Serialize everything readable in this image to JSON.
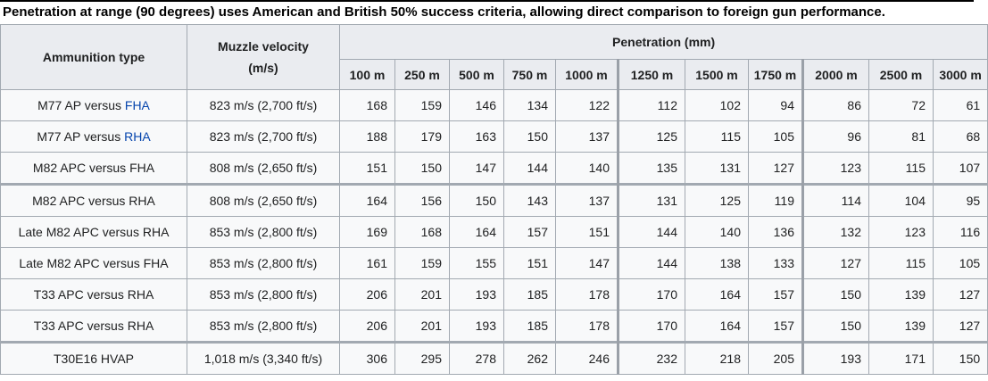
{
  "page": {
    "caption": "Penetration at range (90 degrees) uses American and British 50% success criteria, allowing direct comparison to foreign gun performance."
  },
  "colors": {
    "header_bg": "#eaecf0",
    "cell_bg": "#f8f9fa",
    "border": "#a2a9b1",
    "link": "#0645ad",
    "top_rule": "#000000"
  },
  "table": {
    "col1_header": "Ammunition type",
    "col2_header_line1": "Muzzle velocity",
    "col2_header_line2": "(m/s)",
    "group_header": "Penetration (mm)",
    "range_headers": [
      "100 m",
      "250 m",
      "500 m",
      "750 m",
      "1000 m",
      "1250 m",
      "1500 m",
      "1750 m",
      "2000 m",
      "2500 m",
      "3000 m"
    ],
    "rows": [
      {
        "ammo_prefix": "M77 AP versus ",
        "ammo_link": "FHA",
        "muzzle": "823 m/s (2,700 ft/s)",
        "thick_top": false,
        "values": [
          168,
          159,
          146,
          134,
          122,
          112,
          102,
          94,
          86,
          72,
          61
        ]
      },
      {
        "ammo_prefix": "M77 AP versus ",
        "ammo_link": "RHA",
        "muzzle": "823 m/s (2,700 ft/s)",
        "thick_top": false,
        "values": [
          188,
          179,
          163,
          150,
          137,
          125,
          115,
          105,
          96,
          81,
          68
        ]
      },
      {
        "ammo_prefix": "M82 APC versus FHA",
        "ammo_link": "",
        "muzzle": "808 m/s (2,650 ft/s)",
        "thick_top": false,
        "values": [
          151,
          150,
          147,
          144,
          140,
          135,
          131,
          127,
          123,
          115,
          107
        ]
      },
      {
        "ammo_prefix": "M82 APC versus RHA",
        "ammo_link": "",
        "muzzle": "808 m/s (2,650 ft/s)",
        "thick_top": true,
        "values": [
          164,
          156,
          150,
          143,
          137,
          131,
          125,
          119,
          114,
          104,
          95
        ]
      },
      {
        "ammo_prefix": "Late M82 APC versus RHA",
        "ammo_link": "",
        "muzzle": "853 m/s (2,800 ft/s)",
        "thick_top": false,
        "values": [
          169,
          168,
          164,
          157,
          151,
          144,
          140,
          136,
          132,
          123,
          116
        ]
      },
      {
        "ammo_prefix": "Late M82 APC versus FHA",
        "ammo_link": "",
        "muzzle": "853 m/s (2,800 ft/s)",
        "thick_top": false,
        "values": [
          161,
          159,
          155,
          151,
          147,
          144,
          138,
          133,
          127,
          115,
          105
        ]
      },
      {
        "ammo_prefix": "T33 APC versus RHA",
        "ammo_link": "",
        "muzzle": "853 m/s (2,800 ft/s)",
        "thick_top": false,
        "values": [
          206,
          201,
          193,
          185,
          178,
          170,
          164,
          157,
          150,
          139,
          127
        ]
      },
      {
        "ammo_prefix": "T33 APC versus RHA",
        "ammo_link": "",
        "muzzle": "853 m/s (2,800 ft/s)",
        "thick_top": false,
        "values": [
          206,
          201,
          193,
          185,
          178,
          170,
          164,
          157,
          150,
          139,
          127
        ]
      },
      {
        "ammo_prefix": "T30E16 HVAP",
        "ammo_link": "",
        "muzzle": "1,018 m/s (3,340 ft/s)",
        "thick_top": true,
        "values": [
          306,
          295,
          278,
          262,
          246,
          232,
          218,
          205,
          193,
          171,
          150
        ]
      }
    ]
  }
}
